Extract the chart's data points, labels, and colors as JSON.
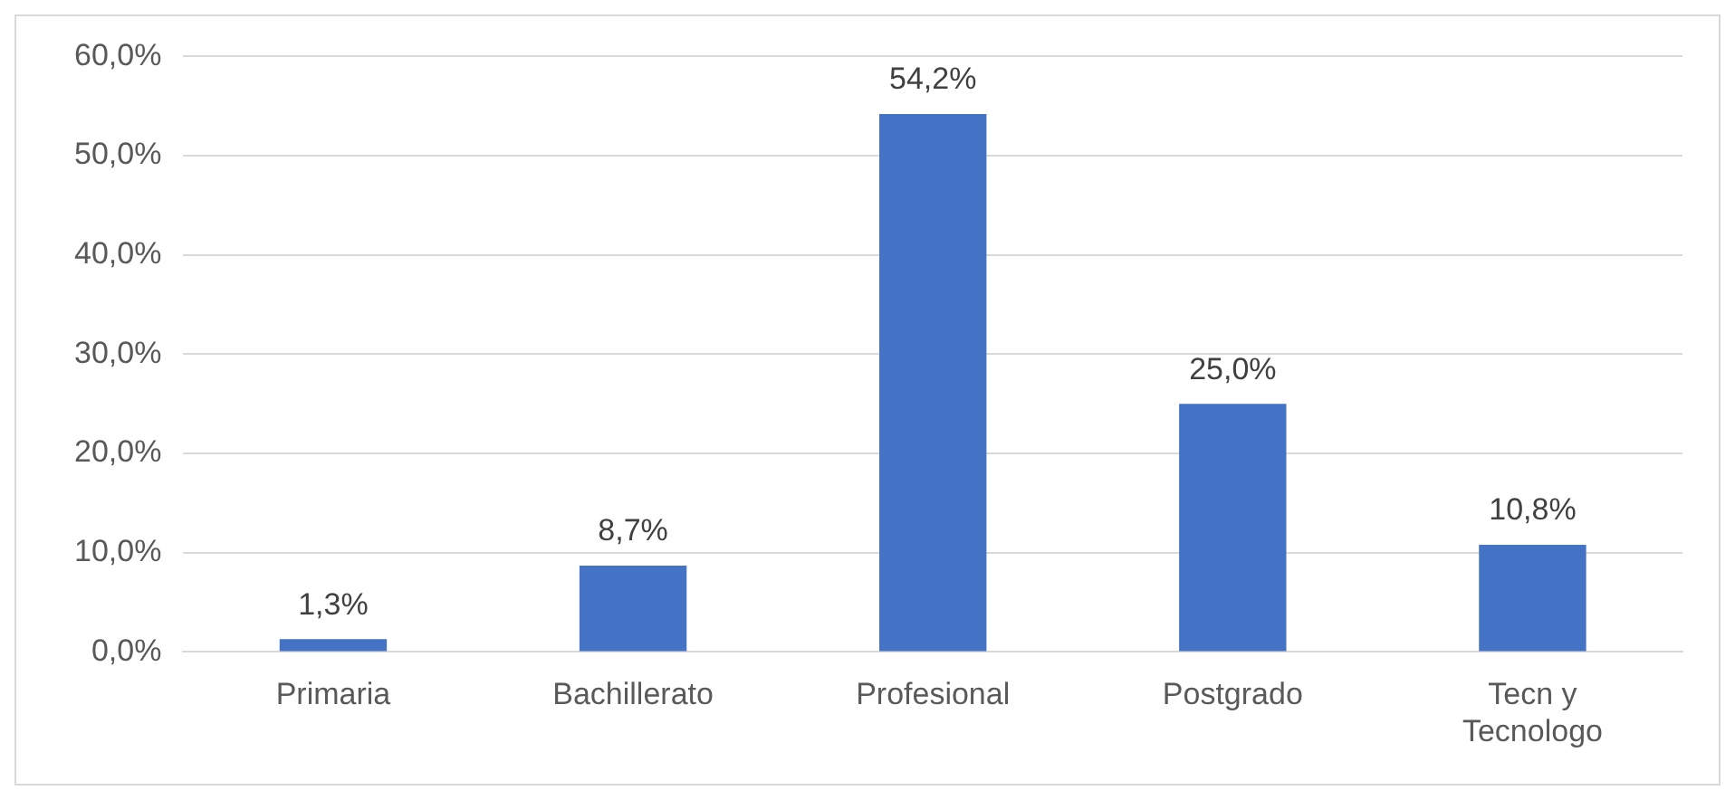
{
  "chart_data": {
    "type": "bar",
    "categories": [
      "Primaria",
      "Bachillerato",
      "Profesional",
      "Postgrado",
      "Tecn y Tecnologo"
    ],
    "values": [
      1.3,
      8.7,
      54.2,
      25.0,
      10.8
    ],
    "value_labels": [
      "1,3%",
      "8,7%",
      "54,2%",
      "25,0%",
      "10,8%"
    ],
    "color": "#4472c4",
    "ylim": [
      0,
      60
    ],
    "yticks": [
      {
        "value": 0,
        "label": "0,0%"
      },
      {
        "value": 10,
        "label": "10,0%"
      },
      {
        "value": 20,
        "label": "20,0%"
      },
      {
        "value": 30,
        "label": "30,0%"
      },
      {
        "value": 40,
        "label": "40,0%"
      },
      {
        "value": 50,
        "label": "50,0%"
      },
      {
        "value": 60,
        "label": "60,0%"
      }
    ],
    "grid": "y",
    "legend": false
  }
}
